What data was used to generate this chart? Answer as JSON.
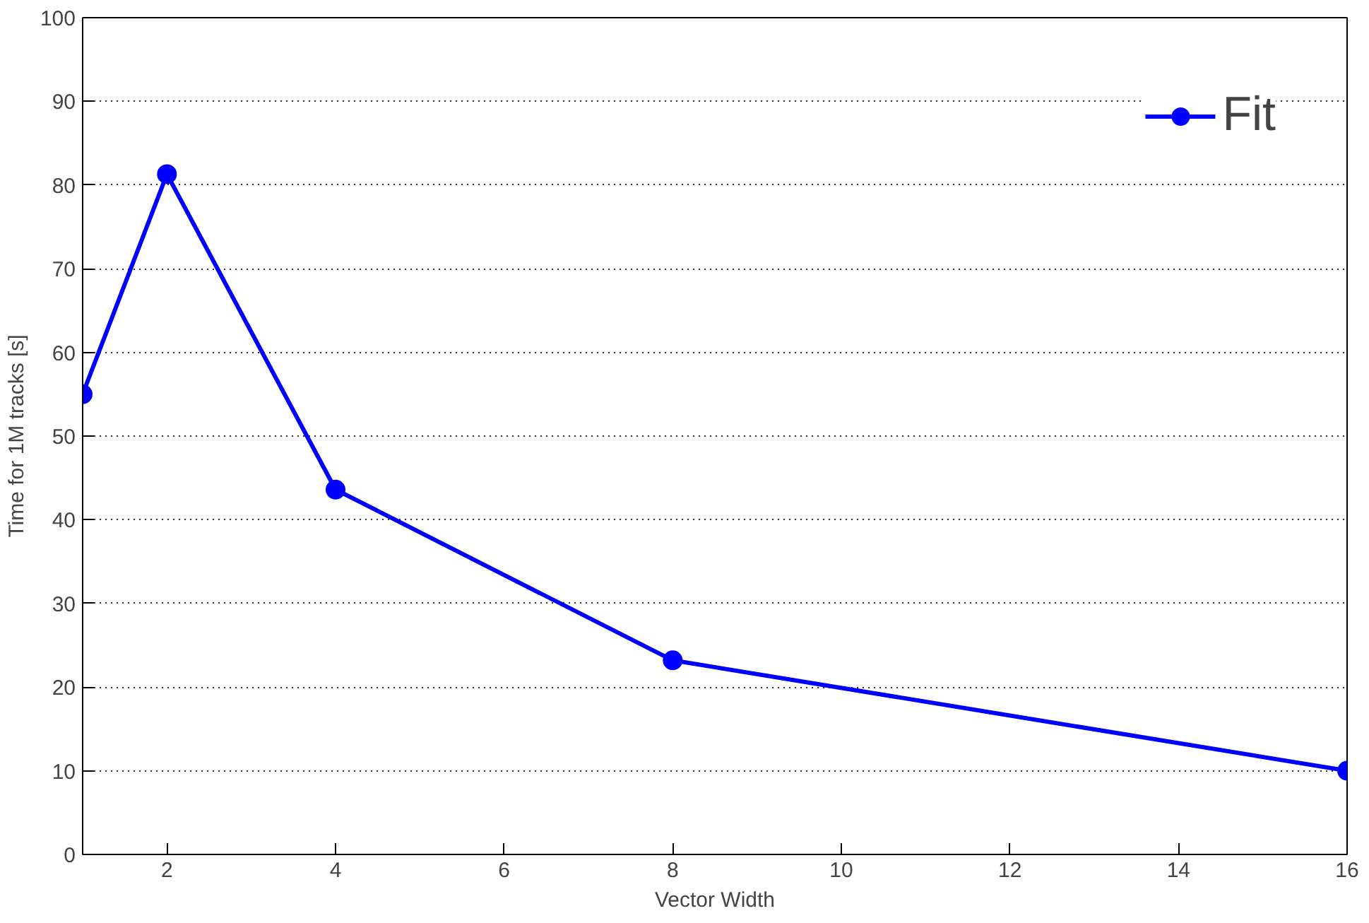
{
  "chart_data": {
    "type": "line",
    "xlabel": "Vector Width",
    "ylabel": "Time for 1M tracks [s]",
    "x": [
      1,
      2,
      4,
      8,
      16
    ],
    "series": [
      {
        "name": "Fit",
        "color": "#0000ff",
        "values": [
          55,
          81.3,
          43.6,
          23.2,
          10.0
        ]
      }
    ],
    "xlim": [
      1,
      16
    ],
    "xticks": [
      2,
      4,
      6,
      8,
      10,
      12,
      14,
      16
    ],
    "ylim": [
      0,
      100
    ],
    "yticks": [
      0,
      10,
      20,
      30,
      40,
      50,
      60,
      70,
      80,
      90,
      100
    ],
    "grid": "y",
    "legend": "top right",
    "marker": "circle",
    "line_style": "solid"
  }
}
